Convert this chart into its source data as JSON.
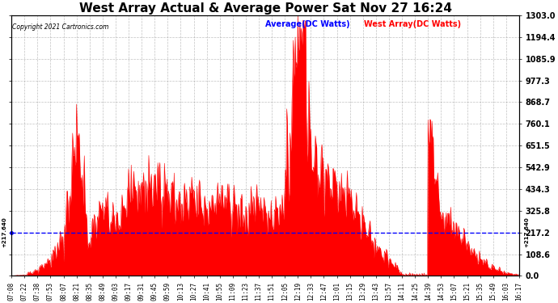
{
  "title": "West Array Actual & Average Power Sat Nov 27 16:24",
  "copyright": "Copyright 2021 Cartronics.com",
  "legend_avg": "Average(DC Watts)",
  "legend_west": "West Array(DC Watts)",
  "avg_value": 217.64,
  "ylim": [
    0.0,
    1303.0
  ],
  "yticks": [
    0.0,
    108.6,
    217.2,
    325.8,
    434.3,
    542.9,
    651.5,
    760.1,
    868.7,
    977.3,
    1085.9,
    1194.4,
    1303.0
  ],
  "bg_color": "#ffffff",
  "grid_color": "#999999",
  "fill_color": "#ff0000",
  "line_color": "#ff0000",
  "avg_line_color": "#0000ff",
  "title_color": "#000000",
  "copyright_color": "#000000",
  "legend_avg_color": "#0000ff",
  "legend_west_color": "#ff0000",
  "avg_label_color": "#000000",
  "tick_label_fontsize": 7,
  "title_fontsize": 11
}
